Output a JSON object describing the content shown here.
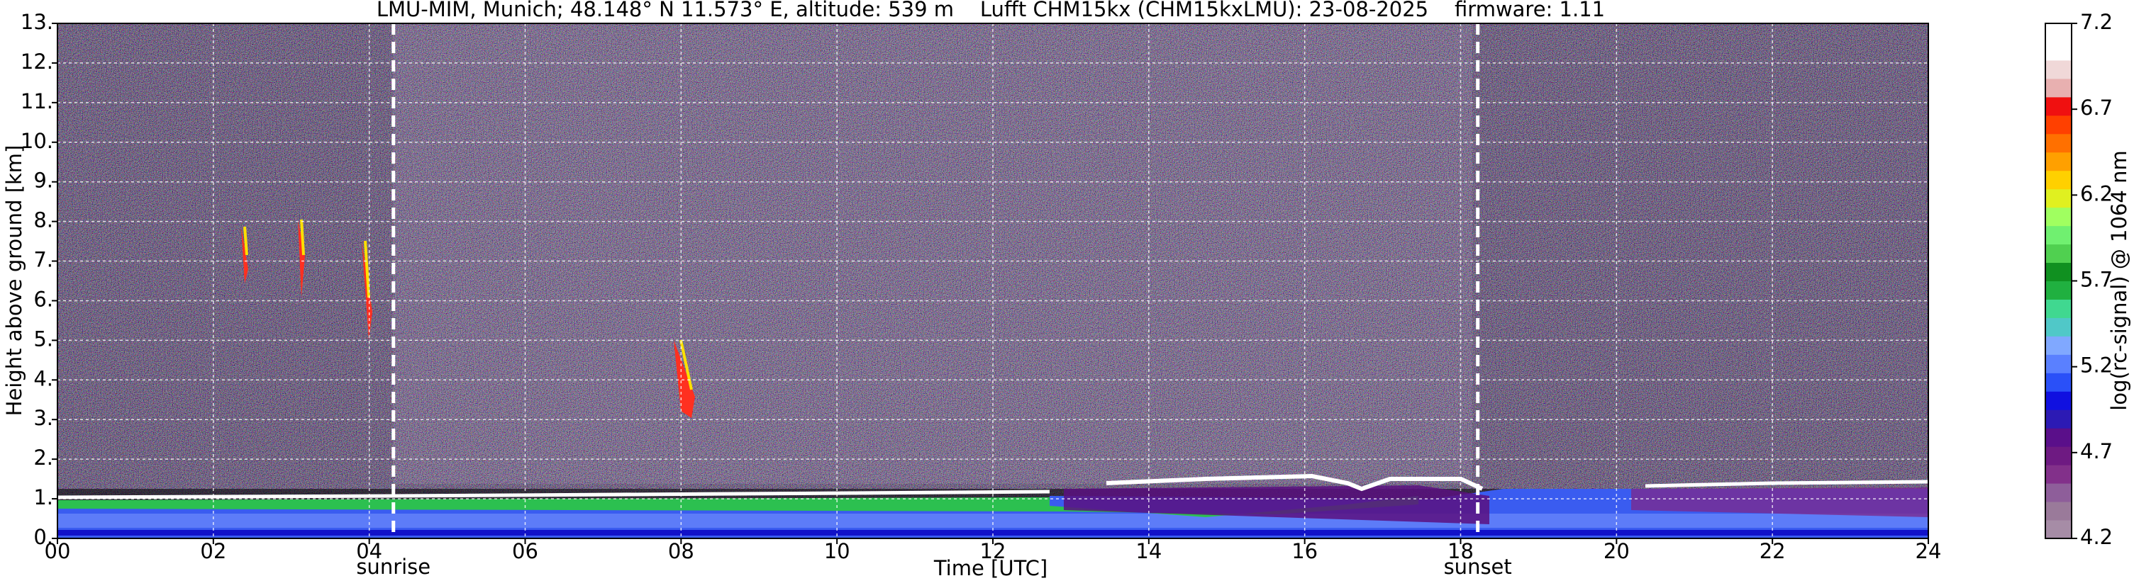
{
  "chart_data": {
    "type": "heatmap",
    "title": "LMU-MIM, Munich; 48.148° N 11.573° E, altitude: 539 m    Lufft CHM15kx (CHM15kxLMU): 23-08-2025    firmware: 1.11",
    "xlabel": "Time [UTC]",
    "ylabel": "Height above ground [km]",
    "xlim": [
      0,
      24
    ],
    "xticks": [
      {
        "value": 0,
        "label": "00"
      },
      {
        "value": 2,
        "label": "02"
      },
      {
        "value": 4,
        "label": "04"
      },
      {
        "value": 6,
        "label": "06"
      },
      {
        "value": 8,
        "label": "08"
      },
      10,
      12,
      14,
      16,
      18,
      20,
      22,
      24
    ],
    "ylim": [
      0,
      13
    ],
    "yticks": [
      {
        "value": 0,
        "label": "0."
      },
      {
        "value": 1,
        "label": "1."
      },
      {
        "value": 2,
        "label": "2."
      },
      {
        "value": 3,
        "label": "3."
      },
      {
        "value": 4,
        "label": "4."
      },
      {
        "value": 5,
        "label": "5."
      },
      {
        "value": 6,
        "label": "6."
      },
      {
        "value": 7,
        "label": "7."
      },
      {
        "value": 8,
        "label": "8."
      },
      {
        "value": 9,
        "label": "9."
      },
      {
        "value": 10,
        "label": "10."
      },
      {
        "value": 11,
        "label": "11."
      },
      {
        "value": 12,
        "label": "12."
      },
      {
        "value": 13,
        "label": "13."
      }
    ],
    "grid": true,
    "annotations": [
      {
        "text": "sunrise",
        "x": 4.31
      },
      {
        "text": "sunset",
        "x": 18.22
      }
    ],
    "colorbar": {
      "label": "log(rc-signal) @ 1064 nm",
      "lim": [
        4.2,
        7.2
      ],
      "ticks": [
        4.2,
        4.7,
        5.2,
        5.7,
        6.2,
        6.7,
        7.2
      ],
      "colors": [
        "#a68ca6",
        "#9a7a9a",
        "#8e5e9a",
        "#82308a",
        "#6e1a82",
        "#5a0f8a",
        "#2c1ab4",
        "#1010e0",
        "#2a50f8",
        "#5a80ff",
        "#80a8ff",
        "#50c8c8",
        "#40d890",
        "#20b040",
        "#109020",
        "#50d050",
        "#70f070",
        "#a0ff60",
        "#e0f020",
        "#ffd000",
        "#ffa000",
        "#ff7000",
        "#ff4000",
        "#f01010",
        "#e8b0b0",
        "#f0d8d8",
        "#ffffff",
        "#ffffff"
      ]
    }
  }
}
